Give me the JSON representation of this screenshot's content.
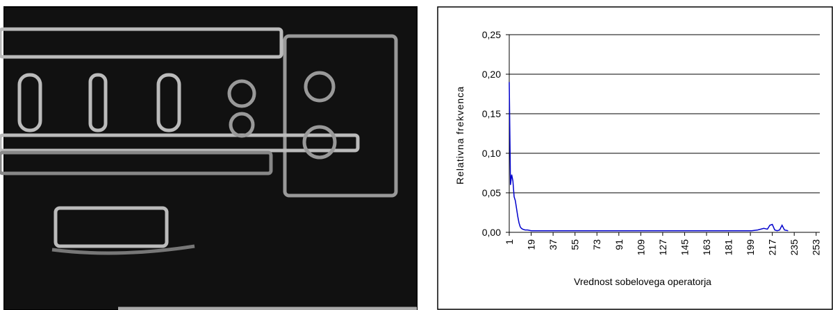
{
  "chart_data": {
    "type": "line",
    "x_label": "Vrednost sobelovega operatorja",
    "y_label": "Relativna frekvenca",
    "x": [
      1,
      2,
      3,
      4,
      5,
      6,
      7,
      8,
      9,
      10,
      11,
      12,
      14,
      16,
      19,
      25,
      30,
      40,
      50,
      60,
      80,
      100,
      120,
      140,
      160,
      180,
      200,
      205,
      210,
      213,
      215,
      217,
      219,
      221,
      223,
      225,
      227,
      230
    ],
    "series": [
      {
        "name": "Relativna frekvenca",
        "color": "#0000cc",
        "values": [
          0.19,
          0.06,
          0.073,
          0.065,
          0.045,
          0.04,
          0.03,
          0.02,
          0.012,
          0.007,
          0.005,
          0.004,
          0.003,
          0.003,
          0.002,
          0.002,
          0.002,
          0.002,
          0.002,
          0.002,
          0.002,
          0.002,
          0.002,
          0.002,
          0.002,
          0.002,
          0.002,
          0.003,
          0.005,
          0.004,
          0.009,
          0.01,
          0.003,
          0.002,
          0.003,
          0.009,
          0.003,
          0.002
        ]
      }
    ],
    "xlim": [
      1,
      256
    ],
    "xticks": [
      1,
      19,
      37,
      55,
      73,
      91,
      109,
      127,
      145,
      163,
      181,
      199,
      217,
      235,
      253
    ],
    "ylim": [
      0,
      0.25
    ],
    "yticks": [
      {
        "value": 0,
        "label": "0,00"
      },
      {
        "value": 0.05,
        "label": "0,05"
      },
      {
        "value": 0.1,
        "label": "0,10"
      },
      {
        "value": 0.15,
        "label": "0,15"
      },
      {
        "value": 0.2,
        "label": "0,20"
      },
      {
        "value": 0.25,
        "label": "0,25"
      }
    ],
    "grid": true
  }
}
